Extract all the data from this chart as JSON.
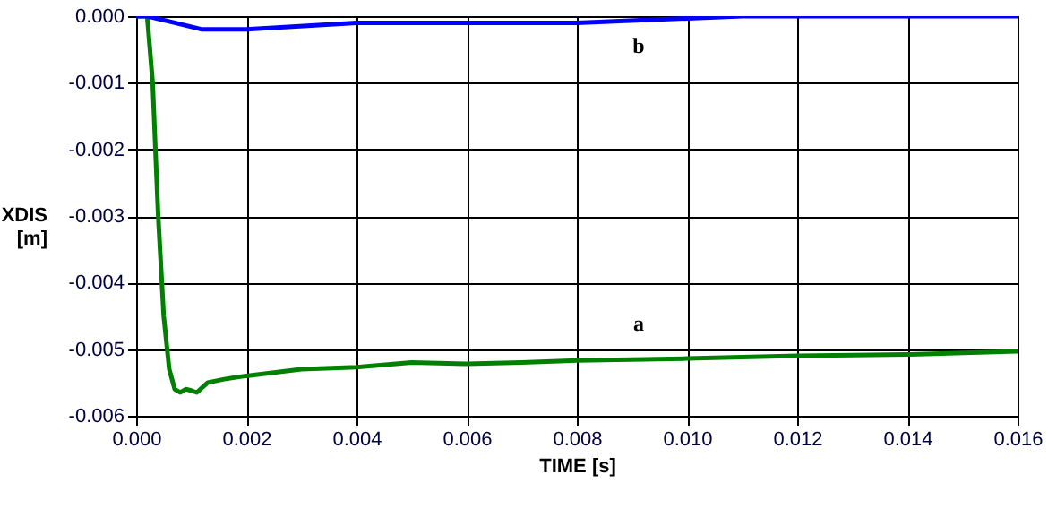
{
  "chart_data": {
    "type": "line",
    "xlabel": "TIME [s]",
    "ylabel": "XDIS [m]",
    "grid": true,
    "marker": "none",
    "line_style": "solid",
    "xlim": [
      0,
      0.016
    ],
    "ylim": [
      -0.006,
      0
    ],
    "xticks": [
      {
        "value": 0,
        "label": "0.000"
      },
      {
        "value": 0.002,
        "label": "0.002"
      },
      {
        "value": 0.004,
        "label": "0.004"
      },
      {
        "value": 0.006,
        "label": "0.006"
      },
      {
        "value": 0.008,
        "label": "0.008"
      },
      {
        "value": 0.01,
        "label": "0.010"
      },
      {
        "value": 0.012,
        "label": "0.012"
      },
      {
        "value": 0.014,
        "label": "0.014"
      },
      {
        "value": 0.016,
        "label": "0.016"
      }
    ],
    "yticks": [
      {
        "value": -0.006,
        "label": "-0.006"
      },
      {
        "value": -0.005,
        "label": "-0.005"
      },
      {
        "value": -0.004,
        "label": "-0.004"
      },
      {
        "value": -0.003,
        "label": "-0.003"
      },
      {
        "value": -0.002,
        "label": "-0.002"
      },
      {
        "value": -0.001,
        "label": "-0.001"
      },
      {
        "value": 0,
        "label": "0.000"
      }
    ],
    "series": [
      {
        "name": "a",
        "color": "#008000",
        "x": [
          0,
          0.0002,
          0.0003,
          0.0004,
          0.0005,
          0.0006,
          0.0007,
          0.0008,
          0.0009,
          0.001,
          0.0011,
          0.0013,
          0.0016,
          0.002,
          0.003,
          0.004,
          0.005,
          0.006,
          0.007,
          0.008,
          0.01,
          0.012,
          0.014,
          0.016
        ],
        "values": [
          0,
          0,
          -0.001,
          -0.003,
          -0.0045,
          -0.0053,
          -0.0056,
          -0.00565,
          -0.0056,
          -0.00562,
          -0.00565,
          -0.0055,
          -0.00545,
          -0.0054,
          -0.0053,
          -0.00527,
          -0.0052,
          -0.00522,
          -0.0052,
          -0.00517,
          -0.00514,
          -0.0051,
          -0.00508,
          -0.00503
        ]
      },
      {
        "name": "b",
        "color": "#0000ff",
        "x": [
          0,
          0.0002,
          0.0007,
          0.0012,
          0.002,
          0.004,
          0.006,
          0.008,
          0.011,
          0.016
        ],
        "values": [
          0,
          0,
          -0.0001,
          -0.0002,
          -0.0002,
          -0.0001,
          -0.0001,
          -0.0001,
          0,
          0
        ]
      }
    ]
  }
}
